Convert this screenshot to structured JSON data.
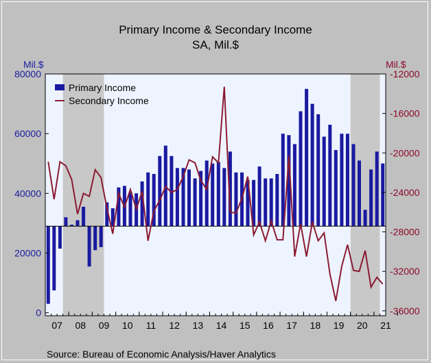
{
  "chart_data": {
    "type": "bar+line",
    "title": "Primary Income & Secondary Income",
    "subtitle": "SA, Mil.$",
    "left_axis_unit": "Mil.$",
    "right_axis_unit": "Mil.$",
    "source": "Source:  Bureau of Economic Analysis/Haver Analytics",
    "x_tick_labels": [
      "07",
      "08",
      "09",
      "10",
      "11",
      "12",
      "13",
      "14",
      "15",
      "16",
      "17",
      "18",
      "19",
      "20",
      "21"
    ],
    "left_ticks": [
      "0",
      "20000",
      "40000",
      "60000",
      "80000"
    ],
    "right_ticks": [
      "-12000",
      "-16000",
      "-20000",
      "-24000",
      "-28000",
      "-32000",
      "-36000"
    ],
    "ylim_left": [
      -1000,
      80000
    ],
    "ylim_right": [
      -36500,
      -12000
    ],
    "start_period": "2007-Q1",
    "recession_shading": [
      {
        "from": "2007-Q4",
        "to": "2009-Q2"
      },
      {
        "from": "2020-Q1",
        "to": "2021-Q1"
      }
    ],
    "series": [
      {
        "name": "Primary Income",
        "axis": "left",
        "color": "#1a1aa0",
        "values": [
          3000,
          7500,
          21500,
          32000,
          29500,
          31000,
          35500,
          15500,
          21000,
          22000,
          37000,
          35000,
          42000,
          42500,
          40500,
          40000,
          44000,
          47000,
          46500,
          52500,
          56000,
          52500,
          48500,
          48500,
          48000,
          45000,
          47500,
          51000,
          50000,
          50500,
          48500,
          54000,
          47000,
          47000,
          44500,
          44500,
          49000,
          45000,
          45000,
          46500,
          60000,
          59500,
          56500,
          67500,
          75000,
          70000,
          66500,
          59000,
          63000,
          54500,
          60000,
          60000,
          56500,
          51000,
          34500,
          48000,
          54000,
          50000
        ]
      },
      {
        "name": "Secondary Income",
        "axis": "right",
        "color": "#8b1a32",
        "values": [
          -20900,
          -24700,
          -20900,
          -21300,
          -22700,
          -26200,
          -24100,
          -24400,
          -21700,
          -22500,
          -25600,
          -28200,
          -24100,
          -25500,
          -23700,
          -25700,
          -23900,
          -28900,
          -25900,
          -24800,
          -23400,
          -24000,
          -23700,
          -22400,
          -20700,
          -21000,
          -22800,
          -23700,
          -20400,
          -21000,
          -13300,
          -26000,
          -26100,
          -24600,
          -22400,
          -28300,
          -27000,
          -28900,
          -26900,
          -28800,
          -28800,
          -20300,
          -30500,
          -27200,
          -30500,
          -27000,
          -28900,
          -28100,
          -32300,
          -35000,
          -31500,
          -29300,
          -31900,
          -32000,
          -29900,
          -33600,
          -32600,
          -33300
        ]
      }
    ]
  }
}
